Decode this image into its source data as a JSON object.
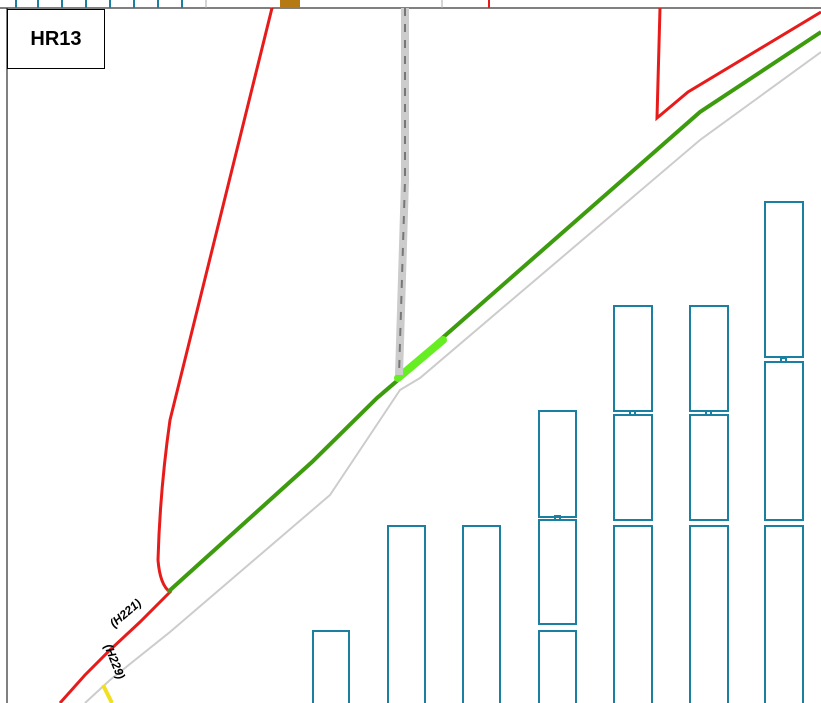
{
  "map": {
    "title": "HR13",
    "route_labels": [
      "(H221)",
      "(H229)"
    ],
    "colors": {
      "red_route": "#e81b1b",
      "green_route": "#3d9b0e",
      "highlight": "#66ee22",
      "grey_line": "#cccccc",
      "dashed_line": "#777777",
      "parking_outline": "#1a7fa0",
      "yellow_route": "#f0e020",
      "brown_marker": "#b57a14"
    }
  }
}
